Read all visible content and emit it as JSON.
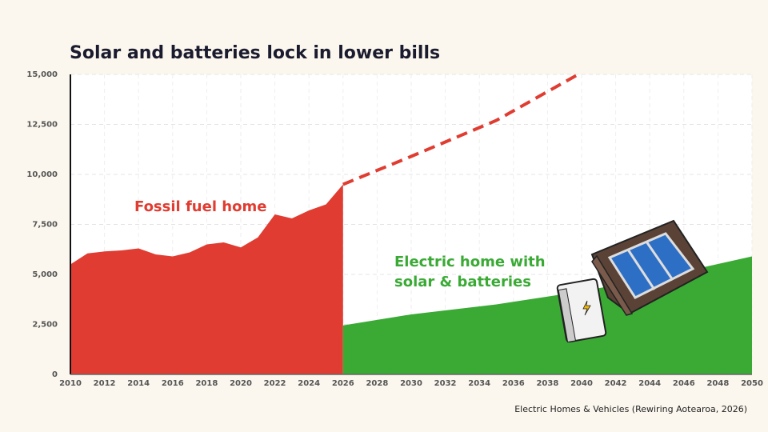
{
  "chart_data": {
    "type": "area",
    "title": "Solar and batteries lock in lower bills",
    "source": "Electric Homes & Vehicles (Rewiring Aotearoa, 2026)",
    "annotations": [
      {
        "text": "Fossil fuel home",
        "color": "#e03c31"
      },
      {
        "text": "Electric home with",
        "color": "#3aaa35"
      },
      {
        "text": "solar & batteries",
        "color": "#3aaa35"
      }
    ],
    "xlim": [
      2010,
      2050
    ],
    "xticks": [
      2010,
      2012,
      2014,
      2016,
      2018,
      2020,
      2022,
      2024,
      2026,
      2028,
      2030,
      2032,
      2034,
      2036,
      2038,
      2040,
      2042,
      2044,
      2046,
      2048,
      2050
    ],
    "ylim": [
      0,
      15000
    ],
    "yticks": [
      0,
      {
        "value": 2500,
        "label": "2,500"
      },
      {
        "value": 5000,
        "label": "5,000"
      },
      {
        "value": 7500,
        "label": "7,500"
      },
      {
        "value": 10000,
        "label": "10,000"
      },
      {
        "value": 12500,
        "label": "12,500"
      },
      {
        "value": 15000,
        "label": "15,000"
      }
    ],
    "grid": true,
    "series": [
      {
        "style": "area",
        "color": "#e03c31",
        "x": [
          2010,
          2011,
          2012,
          2013,
          2014,
          2015,
          2016,
          2017,
          2018,
          2019,
          2020,
          2021,
          2022,
          2023,
          2024,
          2025,
          2026
        ],
        "values": [
          5500,
          6050,
          6150,
          6200,
          6300,
          6000,
          5900,
          6100,
          6500,
          6600,
          6350,
          6850,
          8000,
          7800,
          8200,
          8500,
          9500
        ]
      },
      {
        "style": "dashed",
        "color": "#e03c31",
        "x": [
          2026,
          2030,
          2035,
          2039.8
        ],
        "values": [
          9500,
          10900,
          12700,
          15000
        ]
      },
      {
        "style": "area",
        "color": "#3aaa35",
        "x": [
          2026,
          2030,
          2035,
          2040,
          2045,
          2050
        ],
        "values": [
          2450,
          3000,
          3500,
          4150,
          4950,
          5900
        ]
      }
    ]
  }
}
